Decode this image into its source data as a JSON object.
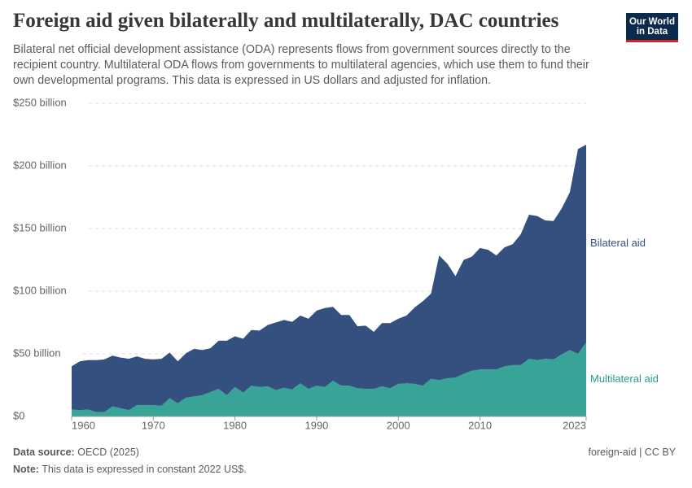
{
  "header": {
    "title": "Foreign aid given bilaterally and multilaterally, DAC countries",
    "subtitle": "Bilateral net official development assistance (ODA) represents flows from government sources directly to the recipient country. Multilateral ODA flows from governments to multilateral agencies, which use them to fund their own developmental programs. This data is expressed in US dollars and adjusted for inflation.",
    "logo": [
      "Our World",
      "in Data"
    ]
  },
  "chart_data": {
    "type": "area",
    "stacked": true,
    "grid": true,
    "x": [
      1960,
      1961,
      1962,
      1963,
      1964,
      1965,
      1966,
      1967,
      1968,
      1969,
      1970,
      1971,
      1972,
      1973,
      1974,
      1975,
      1976,
      1977,
      1978,
      1979,
      1980,
      1981,
      1982,
      1983,
      1984,
      1985,
      1986,
      1987,
      1988,
      1989,
      1990,
      1991,
      1992,
      1993,
      1994,
      1995,
      1996,
      1997,
      1998,
      1999,
      2000,
      2001,
      2002,
      2003,
      2004,
      2005,
      2006,
      2007,
      2008,
      2009,
      2010,
      2011,
      2012,
      2013,
      2014,
      2015,
      2016,
      2017,
      2018,
      2019,
      2020,
      2021,
      2022,
      2023
    ],
    "xlim": [
      1960,
      2023
    ],
    "xticks": [
      1960,
      1970,
      1980,
      1990,
      2000,
      2010,
      2023
    ],
    "ylim": [
      0,
      250
    ],
    "yticks": [
      {
        "value": 0,
        "label": "$0"
      },
      {
        "value": 50,
        "label": "$50 billion"
      },
      {
        "value": 100,
        "label": "$100 billion"
      },
      {
        "value": 150,
        "label": "$150 billion"
      },
      {
        "value": 200,
        "label": "$200 billion"
      },
      {
        "value": 250,
        "label": "$250 billion"
      }
    ],
    "series": [
      {
        "name": "Multilateral aid",
        "color": "#38a397",
        "label_color": "#2a9a8e",
        "values": [
          5.5,
          5,
          5.5,
          3.5,
          3.5,
          8,
          6.5,
          5,
          9,
          9,
          9,
          8.5,
          14.5,
          10.5,
          15,
          16,
          17,
          19.5,
          22,
          17,
          23.5,
          19,
          24.5,
          23.5,
          24,
          21,
          23,
          21.5,
          26.5,
          22,
          24.5,
          23.5,
          28.5,
          24.5,
          24.5,
          22.5,
          22,
          22,
          24,
          22.5,
          26,
          26.5,
          26,
          24.5,
          30,
          29,
          30.5,
          31,
          34,
          36.5,
          37.5,
          37.5,
          37.5,
          40,
          41,
          41,
          46,
          45,
          46,
          45.5,
          49.5,
          53,
          50,
          59
        ]
      },
      {
        "name": "Bilateral aid",
        "color": "#34507e",
        "label_color": "#34507e",
        "values": [
          34.5,
          39,
          39.5,
          41.5,
          42,
          40.5,
          40.5,
          41,
          39,
          37,
          36.5,
          37.5,
          36.5,
          33.5,
          35.5,
          38,
          36,
          35,
          38.5,
          43.5,
          40.5,
          43,
          44.5,
          45,
          49,
          54,
          54,
          54,
          54,
          56,
          60,
          63,
          59,
          56.5,
          56.5,
          49.5,
          50.5,
          45.5,
          50.5,
          52,
          52,
          54,
          61,
          67.5,
          68,
          99.5,
          91.5,
          81,
          91,
          91,
          97,
          95.5,
          91,
          95,
          96.5,
          104.5,
          115,
          115,
          110.5,
          110.5,
          116.5,
          126,
          163.5,
          158
        ]
      }
    ]
  },
  "footer": {
    "source_label": "Data source:",
    "source": "OECD (2025)",
    "note_label": "Note:",
    "note": "This data is expressed in constant 2022 US$.",
    "license": "foreign-aid | CC BY"
  }
}
